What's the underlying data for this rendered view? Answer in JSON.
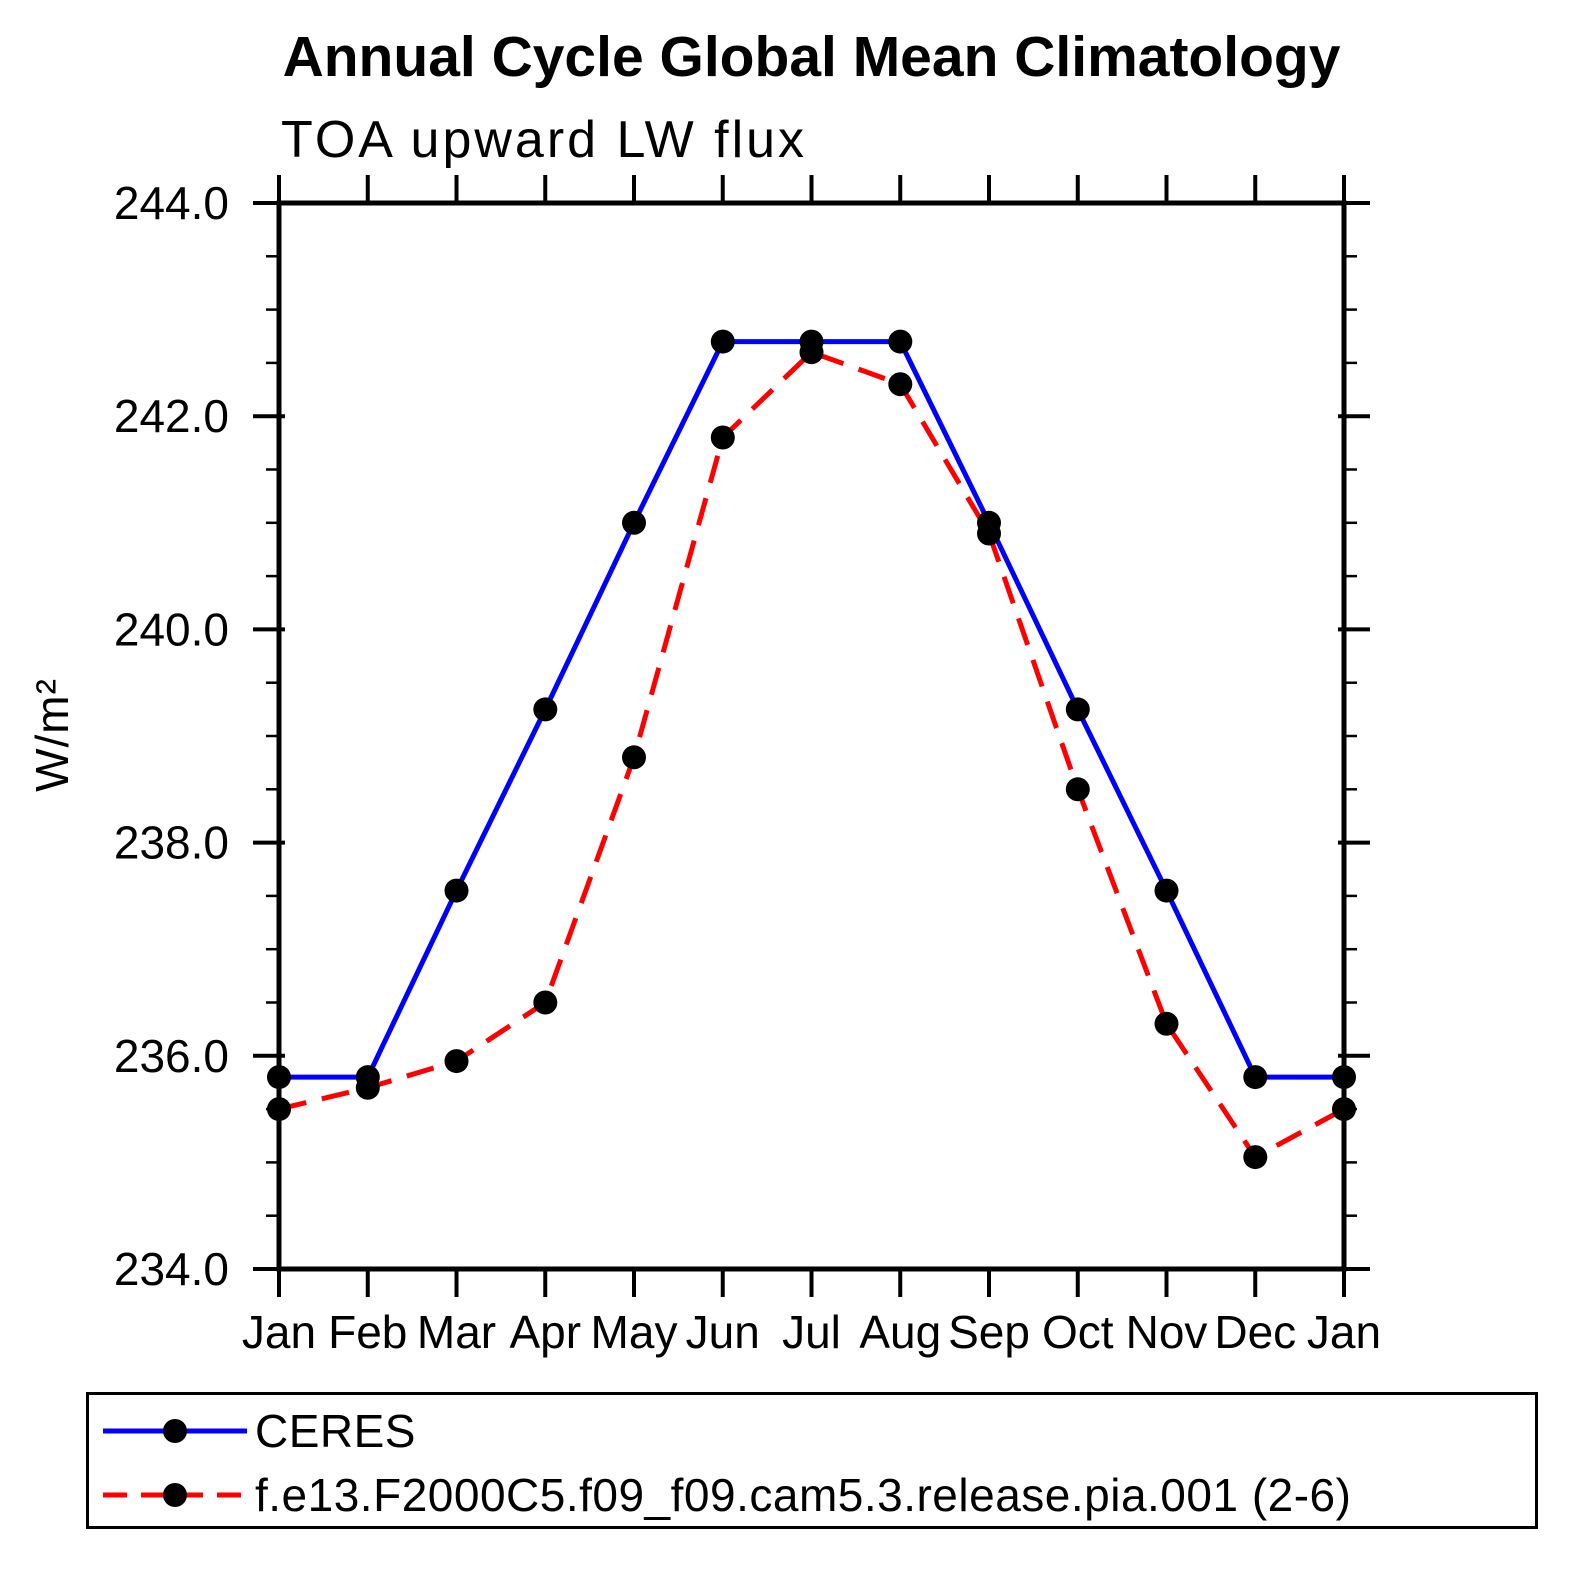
{
  "chart_data": {
    "type": "line",
    "title": "Annual Cycle Global Mean Climatology",
    "subtitle": "TOA upward LW flux",
    "ylabel": "W/m²",
    "xlabel": "",
    "x_categories": [
      "Jan",
      "Feb",
      "Mar",
      "Apr",
      "May",
      "Jun",
      "Jul",
      "Aug",
      "Sep",
      "Oct",
      "Nov",
      "Dec",
      "Jan"
    ],
    "ylim": [
      234.0,
      244.0
    ],
    "ytick_major_interval": 2.0,
    "ytick_minor_interval": 0.5,
    "ytick_labels": [
      "234.0",
      "236.0",
      "238.0",
      "240.0",
      "242.0",
      "244.0"
    ],
    "grid": false,
    "legend_position": "bottom",
    "marker": "circle",
    "marker_color": "#000000",
    "axis_color": "#000000",
    "series": [
      {
        "name": "CERES",
        "color": "#0000ff",
        "style": "solid",
        "values": [
          235.8,
          235.8,
          237.55,
          239.25,
          241.0,
          242.7,
          242.7,
          242.7,
          241.0,
          239.25,
          237.55,
          235.8,
          235.8
        ]
      },
      {
        "name": "f.e13.F2000C5.f09_f09.cam5.3.release.pia.001 (2-6)",
        "color": "#ff0000",
        "style": "dashed",
        "values": [
          235.5,
          235.7,
          235.95,
          236.5,
          238.8,
          241.8,
          242.6,
          242.3,
          240.9,
          238.5,
          236.3,
          235.05,
          235.5
        ]
      }
    ]
  }
}
